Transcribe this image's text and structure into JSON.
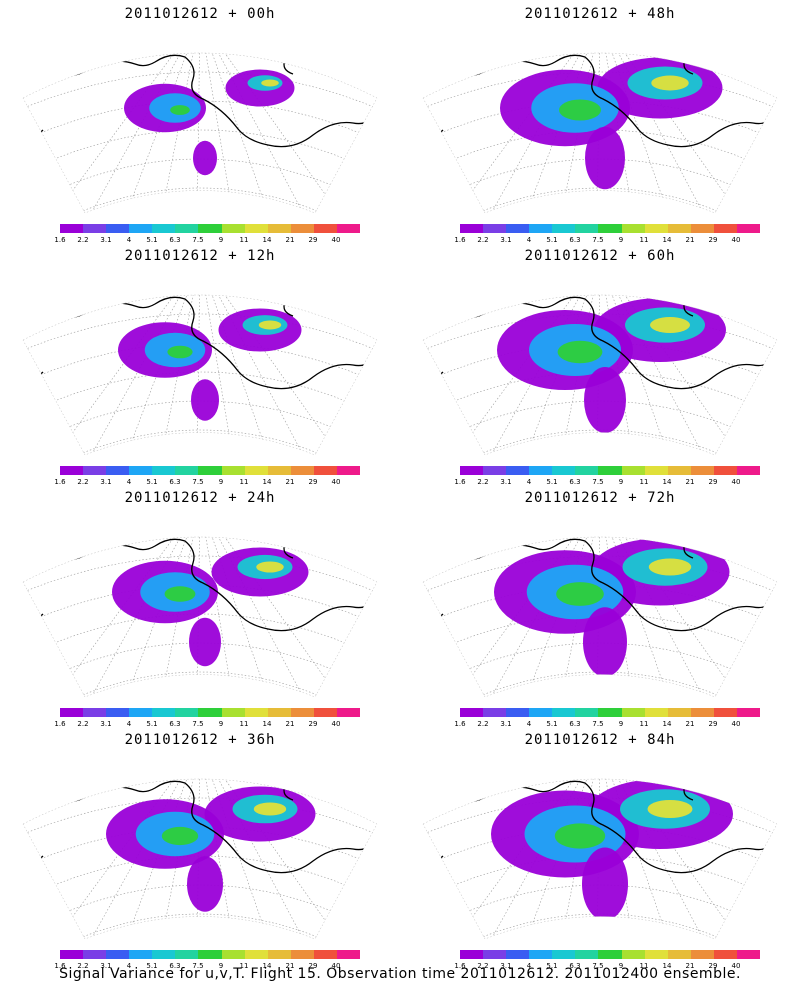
{
  "panels": [
    {
      "title": "2011012612 + 00h",
      "intensity": 0.35
    },
    {
      "title": "2011012612 + 48h",
      "intensity": 0.75
    },
    {
      "title": "2011012612 + 12h",
      "intensity": 0.45
    },
    {
      "title": "2011012612 + 60h",
      "intensity": 0.8
    },
    {
      "title": "2011012612 + 24h",
      "intensity": 0.55
    },
    {
      "title": "2011012612 + 72h",
      "intensity": 0.85
    },
    {
      "title": "2011012612 + 36h",
      "intensity": 0.65
    },
    {
      "title": "2011012612 + 84h",
      "intensity": 0.9
    }
  ],
  "colorbar": {
    "labels": [
      "1.6",
      "2.2",
      "3.1",
      "4",
      "5.1",
      "6.3",
      "7.5",
      "9",
      "11",
      "14",
      "21",
      "29",
      "40"
    ],
    "colors": [
      "#9a00d8",
      "#7a3ee6",
      "#3a5df2",
      "#1ea6f5",
      "#19c8d2",
      "#22d3a0",
      "#2ecf3a",
      "#a8e030",
      "#e0e03a",
      "#e6bc38",
      "#ec8e3a",
      "#f0503c",
      "#ee1a8a"
    ]
  },
  "caption": "Signal Variance for u,v,T. Flight 15. Observation time 2011012612. 2011012400 ensemble."
}
